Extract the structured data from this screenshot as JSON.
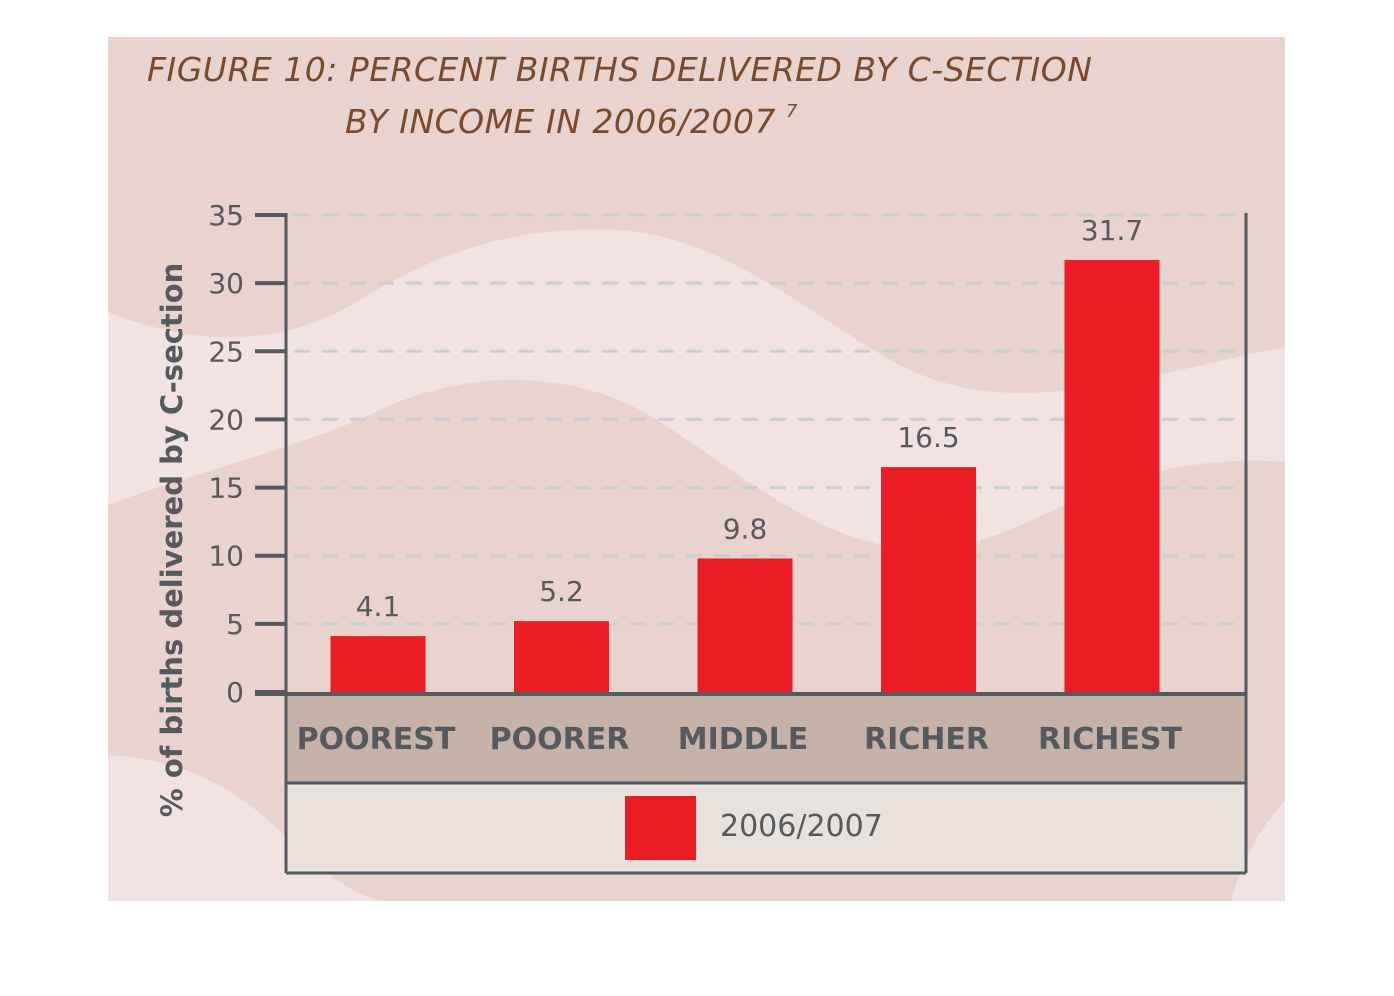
{
  "title": {
    "line1": "FIGURE 10: PERCENT BIRTHS DELIVERED BY C-SECTION",
    "line2": "BY INCOME IN 2006/2007",
    "footnote": "7"
  },
  "colors": {
    "background": "#e9d3cf",
    "wave_light": "#f1e3e1",
    "bar": "#ec1c24",
    "category_band": "#c5b3a9",
    "legend_band": "#e8e1dc",
    "axis": "#555a5f",
    "grid": "#c8d0d2"
  },
  "chart_data": {
    "type": "bar",
    "categories": [
      "POOREST",
      "POORER",
      "MIDDLE",
      "RICHER",
      "RICHEST"
    ],
    "series": [
      {
        "name": "2006/2007",
        "values": [
          4.1,
          5.2,
          9.8,
          16.5,
          31.7
        ]
      }
    ],
    "value_labels": [
      "4.1",
      "5.2",
      "9.8",
      "16.5",
      "31.7"
    ],
    "ylabel": "% of births delivered by C-section",
    "ylim": [
      0,
      35
    ],
    "yticks": [
      0,
      5,
      10,
      15,
      20,
      25,
      30,
      35
    ],
    "ytick_labels": [
      "0",
      "5",
      "10",
      "15",
      "20",
      "25",
      "30",
      "35"
    ],
    "grid": true,
    "legend_position": "bottom"
  }
}
